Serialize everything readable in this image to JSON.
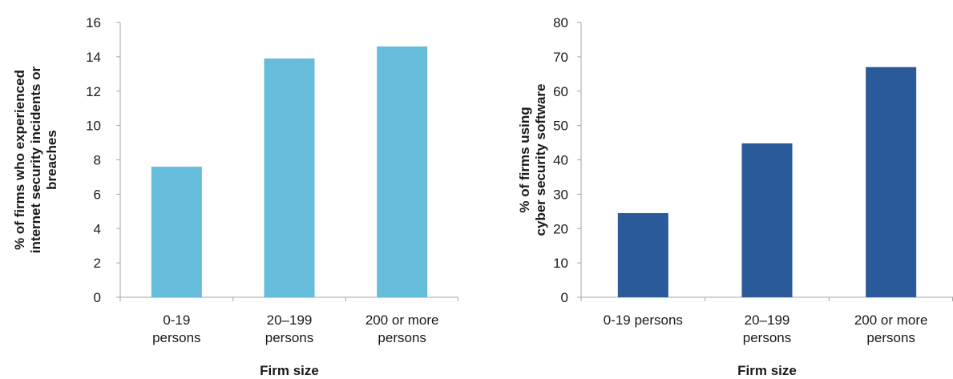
{
  "chart_data": [
    {
      "type": "bar",
      "title": "",
      "categories": [
        [
          "0-19",
          "persons"
        ],
        [
          "20–199",
          "persons"
        ],
        [
          "200 or more",
          "persons"
        ]
      ],
      "values": [
        7.6,
        13.9,
        14.6
      ],
      "xlabel": "Firm size",
      "ylabel": [
        "% of firms who experienced",
        "internet security incidents or",
        "breaches"
      ],
      "ylim": [
        0,
        16
      ],
      "yticks": [
        0,
        2,
        4,
        6,
        8,
        10,
        12,
        14,
        16
      ],
      "grid": false,
      "legend": "none",
      "color": "#66bcdb"
    },
    {
      "type": "bar",
      "title": "",
      "categories": [
        [
          "0-19 persons"
        ],
        [
          "20–199",
          "persons"
        ],
        [
          "200 or more",
          "persons"
        ]
      ],
      "values": [
        24.5,
        44.8,
        67.0
      ],
      "xlabel": "Firm size",
      "ylabel": [
        "% of firms using",
        "cyber security software"
      ],
      "ylim": [
        0,
        80
      ],
      "yticks": [
        0,
        10,
        20,
        30,
        40,
        50,
        60,
        70,
        80
      ],
      "grid": false,
      "legend": "none",
      "color": "#2a5a9a"
    }
  ]
}
